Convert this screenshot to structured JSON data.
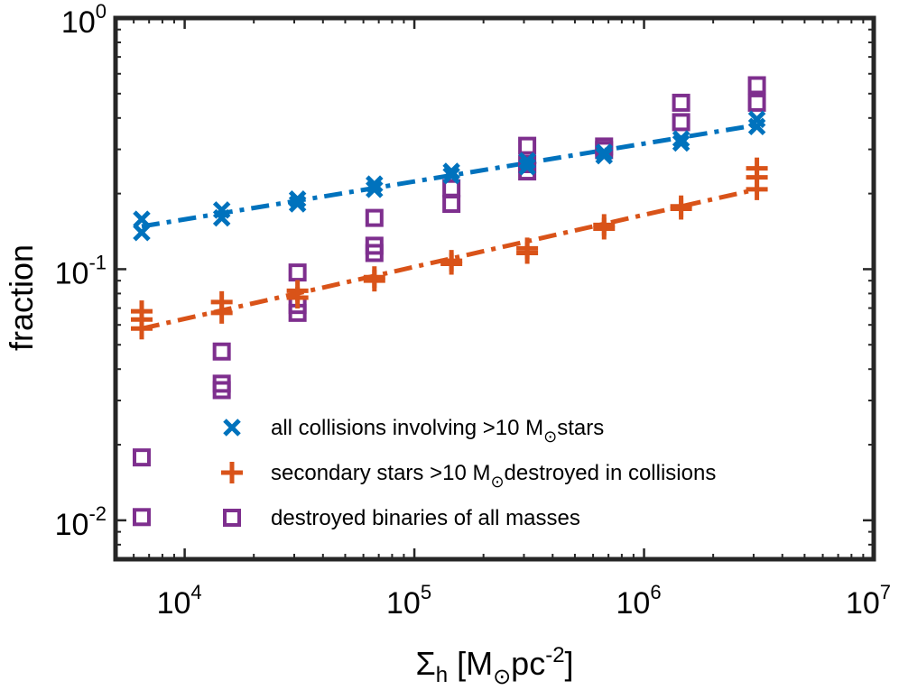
{
  "chart_data": {
    "type": "scatter",
    "scale": "loglog",
    "xlabel": {
      "main": "Σ",
      "sub": "h",
      "pre": " [M",
      "sun": "⊙",
      "post": "pc",
      "sup": "-2",
      "close": "]"
    },
    "ylabel": "fraction",
    "xlim": [
      5000,
      10000000
    ],
    "ylim": [
      0.007,
      1.0
    ],
    "x_ticks": [
      {
        "value": 10000,
        "base": "10",
        "exp": "4"
      },
      {
        "value": 100000,
        "base": "10",
        "exp": "5"
      },
      {
        "value": 1000000,
        "base": "10",
        "exp": "6"
      },
      {
        "value": 10000000,
        "base": "10",
        "exp": "7"
      }
    ],
    "y_ticks": [
      {
        "value": 0.01,
        "base": "10",
        "exp": "-2"
      },
      {
        "value": 0.1,
        "base": "10",
        "exp": "-1"
      },
      {
        "value": 1.0,
        "base": "10",
        "exp": "0"
      }
    ],
    "series": [
      {
        "name": "all collisions involving >10 M⊙stars",
        "legend": {
          "pre": "all collisions involving >10 M",
          "sun": "⊙",
          "post": "stars"
        },
        "marker": "x",
        "color": "#0072BD",
        "x": [
          6500,
          6500,
          14500,
          14500,
          31000,
          31000,
          67000,
          67000,
          145000,
          145000,
          310000,
          310000,
          670000,
          670000,
          1450000,
          1450000,
          3100000,
          3100000
        ],
        "y": [
          0.158,
          0.14,
          0.172,
          0.16,
          0.19,
          0.182,
          0.218,
          0.208,
          0.245,
          0.236,
          0.27,
          0.256,
          0.292,
          0.283,
          0.33,
          0.318,
          0.395,
          0.37
        ],
        "fit": {
          "x": [
            6500,
            3100000
          ],
          "y": [
            0.148,
            0.375
          ]
        }
      },
      {
        "name": "secondary stars >10 M⊙destroyed in collisions",
        "legend": {
          "pre": "secondary stars >10 M",
          "sun": "⊙",
          "post": "destroyed in collisions"
        },
        "marker": "+",
        "color": "#D95319",
        "x": [
          6500,
          6500,
          6500,
          14500,
          14500,
          31000,
          31000,
          67000,
          67000,
          145000,
          145000,
          310000,
          310000,
          670000,
          670000,
          1450000,
          1450000,
          3100000,
          3100000,
          3100000
        ],
        "y": [
          0.068,
          0.063,
          0.058,
          0.074,
          0.067,
          0.082,
          0.077,
          0.093,
          0.09,
          0.108,
          0.105,
          0.121,
          0.116,
          0.15,
          0.145,
          0.178,
          0.174,
          0.252,
          0.232,
          0.208
        ],
        "fit": {
          "x": [
            6500,
            3100000
          ],
          "y": [
            0.058,
            0.208
          ]
        }
      },
      {
        "name": "destroyed binaries of all masses",
        "legend": {
          "pre": "destroyed binaries of all masses",
          "sun": "",
          "post": ""
        },
        "marker": "square",
        "color": "#7E2F8E",
        "x": [
          6500,
          6500,
          14500,
          14500,
          14500,
          31000,
          31000,
          31000,
          67000,
          67000,
          67000,
          145000,
          145000,
          310000,
          310000,
          310000,
          670000,
          670000,
          1450000,
          1450000,
          3100000,
          3100000
        ],
        "y": [
          0.0178,
          0.0103,
          0.047,
          0.035,
          0.033,
          0.097,
          0.072,
          0.067,
          0.16,
          0.124,
          0.116,
          0.21,
          0.182,
          0.31,
          0.262,
          0.245,
          0.308,
          0.298,
          0.46,
          0.385,
          0.54,
          0.46
        ]
      }
    ]
  }
}
